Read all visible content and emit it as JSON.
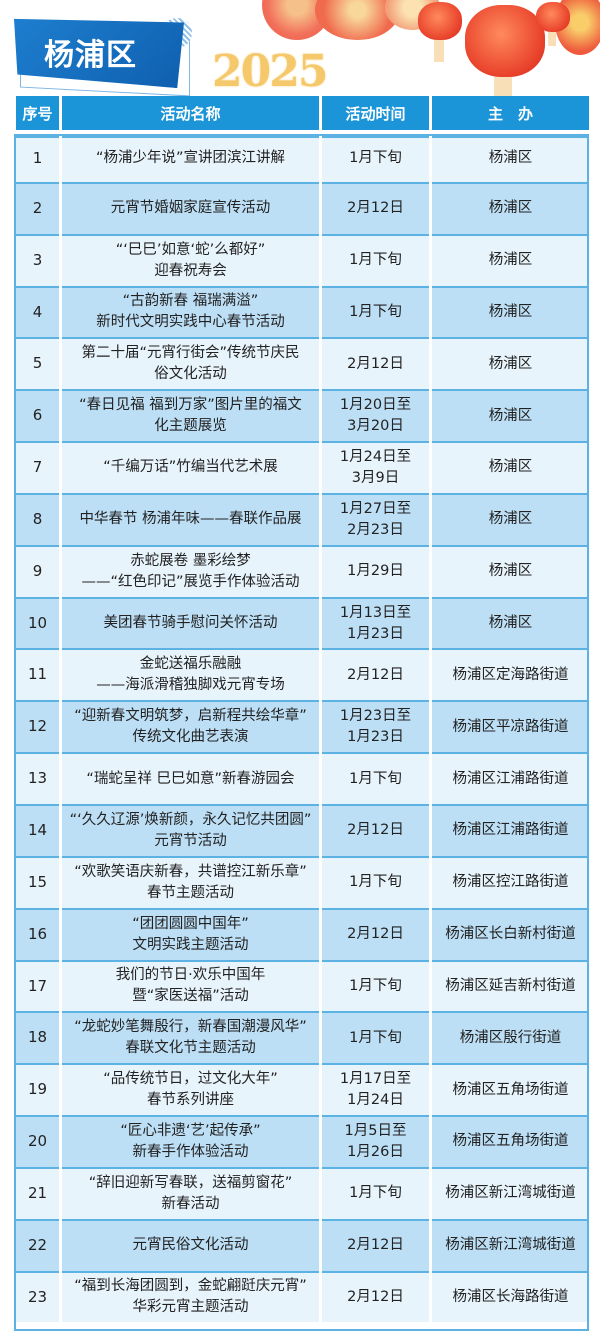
{
  "header": {
    "title": "杨浦区",
    "year": "2025"
  },
  "colors": {
    "header_bg": "#1b95d8",
    "row_light": "#e8f4fc",
    "row_dark": "#bddff5",
    "border": "#5bb2e3"
  },
  "table": {
    "columns": [
      "序号",
      "活动名称",
      "活动时间",
      "主　办"
    ],
    "rows": [
      {
        "no": "1",
        "name": "“杨浦少年说”宣讲团滨江讲解",
        "time": "1月下旬",
        "host": "杨浦区"
      },
      {
        "no": "2",
        "name": "元宵节婚姻家庭宣传活动",
        "time": "2月12日",
        "host": "杨浦区"
      },
      {
        "no": "3",
        "name": "“‘巳巳’如意‘蛇’么都好”\n迎春祝寿会",
        "time": "1月下旬",
        "host": "杨浦区"
      },
      {
        "no": "4",
        "name": "“古韵新春 福瑞满溢”\n新时代文明实践中心春节活动",
        "time": "1月下旬",
        "host": "杨浦区"
      },
      {
        "no": "5",
        "name": "第二十届“元宵行街会”传统节庆民\n俗文化活动",
        "time": "2月12日",
        "host": "杨浦区"
      },
      {
        "no": "6",
        "name": "“春日见福 福到万家”图片里的福文\n化主题展览",
        "time": "1月20日至\n3月20日",
        "host": "杨浦区"
      },
      {
        "no": "7",
        "name": "“千编万话”竹编当代艺术展",
        "time": "1月24日至\n3月9日",
        "host": "杨浦区"
      },
      {
        "no": "8",
        "name": "中华春节 杨浦年味——春联作品展",
        "time": "1月27日至\n2月23日",
        "host": "杨浦区"
      },
      {
        "no": "9",
        "name": "赤蛇展卷 墨彩绘梦\n——“红色印记”展览手作体验活动",
        "time": "1月29日",
        "host": "杨浦区"
      },
      {
        "no": "10",
        "name": "美团春节骑手慰问关怀活动",
        "time": "1月13日至\n1月23日",
        "host": "杨浦区"
      },
      {
        "no": "11",
        "name": "金蛇送福乐融融\n——海派滑稽独脚戏元宵专场",
        "time": "2月12日",
        "host": "杨浦区定海路街道"
      },
      {
        "no": "12",
        "name": "“迎新春文明筑梦，启新程共绘华章”\n传统文化曲艺表演",
        "time": "1月23日至\n1月23日",
        "host": "杨浦区平凉路街道"
      },
      {
        "no": "13",
        "name": "“瑞蛇呈祥 巳巳如意”新春游园会",
        "time": "1月下旬",
        "host": "杨浦区江浦路街道"
      },
      {
        "no": "14",
        "name": "“‘久久辽源’焕新颜，永久记忆共团圆”\n元宵节活动",
        "time": "2月12日",
        "host": "杨浦区江浦路街道"
      },
      {
        "no": "15",
        "name": "“欢歌笑语庆新春，共谱控江新乐章”\n春节主题活动",
        "time": "1月下旬",
        "host": "杨浦区控江路街道"
      },
      {
        "no": "16",
        "name": "“团团圆圆中国年”\n文明实践主题活动",
        "time": "2月12日",
        "host": "杨浦区长白新村街道"
      },
      {
        "no": "17",
        "name": "我们的节日·欢乐中国年\n暨“家医送福”活动",
        "time": "1月下旬",
        "host": "杨浦区延吉新村街道"
      },
      {
        "no": "18",
        "name": "“龙蛇妙笔舞殷行，新春国潮漫风华”\n春联文化节主题活动",
        "time": "1月下旬",
        "host": "杨浦区殷行街道"
      },
      {
        "no": "19",
        "name": "“品传统节日，过文化大年”\n春节系列讲座",
        "time": "1月17日至\n1月24日",
        "host": "杨浦区五角场街道"
      },
      {
        "no": "20",
        "name": "“匠心非遗‘艺’起传承”\n新春手作体验活动",
        "time": "1月5日至\n1月26日",
        "host": "杨浦区五角场街道"
      },
      {
        "no": "21",
        "name": "“辞旧迎新写春联，送福剪窗花”\n新春活动",
        "time": "1月下旬",
        "host": "杨浦区新江湾城街道"
      },
      {
        "no": "22",
        "name": "元宵民俗文化活动",
        "time": "2月12日",
        "host": "杨浦区新江湾城街道"
      },
      {
        "no": "23",
        "name": "“福到长海团圆到，金蛇翩跹庆元宵”\n华彩元宵主题活动",
        "time": "2月12日",
        "host": "杨浦区长海路街道"
      }
    ]
  }
}
